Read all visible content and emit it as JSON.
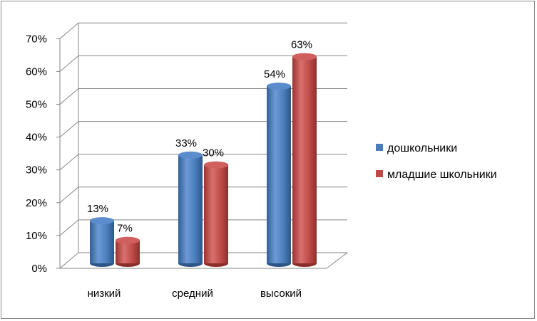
{
  "chart_data": {
    "type": "bar",
    "categories": [
      "низкий",
      "средний",
      "высокий"
    ],
    "series": [
      {
        "name": "дошкольники",
        "values": [
          13,
          33,
          54
        ],
        "labels": [
          "13%",
          "33%",
          "54%"
        ],
        "color": "#4a7ebb"
      },
      {
        "name": "младшие школьники",
        "values": [
          7,
          30,
          63
        ],
        "labels": [
          "7%",
          "30%",
          "63%"
        ],
        "color": "#be4b48"
      }
    ],
    "y_ticks": [
      "0%",
      "10%",
      "20%",
      "30%",
      "40%",
      "50%",
      "60%",
      "70%"
    ],
    "ylim": [
      0,
      70
    ],
    "grid": true,
    "style": "3d-cylinder",
    "legend_position": "right"
  }
}
